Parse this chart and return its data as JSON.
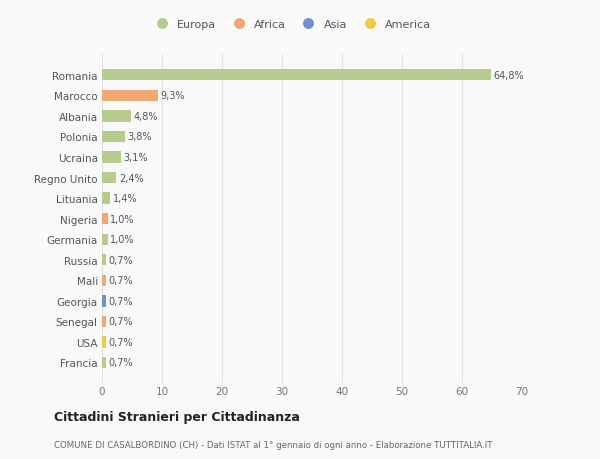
{
  "countries": [
    "Romania",
    "Marocco",
    "Albania",
    "Polonia",
    "Ucraina",
    "Regno Unito",
    "Lituania",
    "Nigeria",
    "Germania",
    "Russia",
    "Mali",
    "Georgia",
    "Senegal",
    "USA",
    "Francia"
  ],
  "values": [
    64.8,
    9.3,
    4.8,
    3.8,
    3.1,
    2.4,
    1.4,
    1.0,
    1.0,
    0.7,
    0.7,
    0.7,
    0.7,
    0.7,
    0.7
  ],
  "labels": [
    "64,8%",
    "9,3%",
    "4,8%",
    "3,8%",
    "3,1%",
    "2,4%",
    "1,4%",
    "1,0%",
    "1,0%",
    "0,7%",
    "0,7%",
    "0,7%",
    "0,7%",
    "0,7%",
    "0,7%"
  ],
  "colors": [
    "#b5cc8e",
    "#f0a875",
    "#b5cc8e",
    "#b5cc8e",
    "#b5cc8e",
    "#b5cc8e",
    "#b5cc8e",
    "#f0a875",
    "#b5cc8e",
    "#b5cc8e",
    "#f0a875",
    "#7090d0",
    "#f0a875",
    "#f0c84a",
    "#b5cc8e"
  ],
  "legend_labels": [
    "Europa",
    "Africa",
    "Asia",
    "America"
  ],
  "legend_colors": [
    "#b5cc8e",
    "#f0a875",
    "#7090d0",
    "#f0c84a"
  ],
  "title": "Cittadini Stranieri per Cittadinanza",
  "subtitle": "COMUNE DI CASALBORDINO (CH) - Dati ISTAT al 1° gennaio di ogni anno - Elaborazione TUTTITALIA.IT",
  "xlim": [
    0,
    70
  ],
  "xticks": [
    0,
    10,
    20,
    30,
    40,
    50,
    60,
    70
  ],
  "background_color": "#f9f9f9",
  "grid_color": "#e0e0e0",
  "bar_height": 0.55
}
